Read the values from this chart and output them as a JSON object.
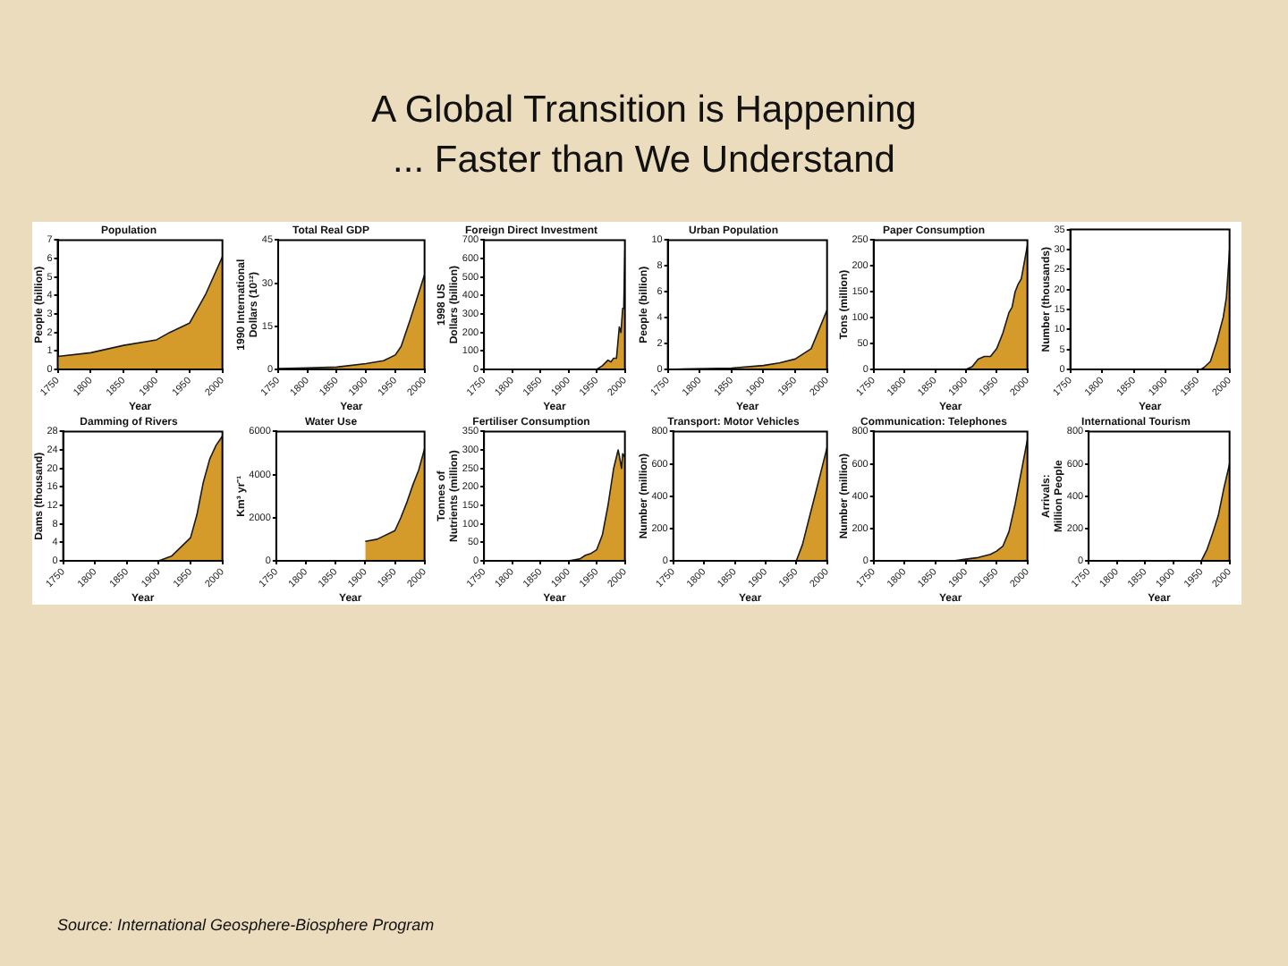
{
  "chart_data": [
    {
      "type": "other",
      "title": "A Global Transition is Happening\n... Faster than We Understand",
      "annotations": [
        "Source: International Geosphere-Biosphere Program"
      ]
    },
    {
      "type": "area",
      "title": "Population",
      "xlabel": "Year",
      "ylabel": "People (billion)",
      "x": [
        1750,
        1800,
        1850,
        1900,
        1920,
        1950,
        1975,
        2000
      ],
      "values": [
        0.7,
        0.9,
        1.3,
        1.6,
        2.0,
        2.5,
        4.1,
        6.1
      ],
      "color": "#d49a2a",
      "xlim": [
        1750,
        2000
      ],
      "xticks": [
        1750,
        1800,
        1850,
        1900,
        1950,
        2000
      ],
      "ylim": [
        0,
        7
      ],
      "yticks": [
        0,
        1,
        2,
        3,
        4,
        5,
        6,
        7
      ]
    },
    {
      "type": "area",
      "title": "Total Real GDP",
      "xlabel": "Year",
      "ylabel": "1990 International Dollars (10¹²)",
      "x": [
        1750,
        1800,
        1850,
        1900,
        1930,
        1950,
        1960,
        1975,
        2000
      ],
      "values": [
        0.3,
        0.5,
        0.8,
        2,
        3,
        5,
        8,
        17,
        33
      ],
      "color": "#d49a2a",
      "xlim": [
        1750,
        2000
      ],
      "xticks": [
        1750,
        1800,
        1850,
        1900,
        1950,
        2000
      ],
      "ylim": [
        0,
        45
      ],
      "yticks": [
        0,
        15,
        30,
        45
      ]
    },
    {
      "type": "area",
      "title": "Foreign Direct Investment",
      "xlabel": "Year",
      "ylabel": "1998 US Dollars (billion)",
      "x": [
        1750,
        1950,
        1960,
        1970,
        1975,
        1980,
        1985,
        1990,
        1993,
        1996,
        1998,
        2000
      ],
      "values": [
        0,
        0,
        20,
        50,
        40,
        60,
        60,
        230,
        200,
        330,
        350,
        650
      ],
      "color": "#d49a2a",
      "xlim": [
        1750,
        2000
      ],
      "xticks": [
        1750,
        1800,
        1850,
        1900,
        1950,
        2000
      ],
      "ylim": [
        0,
        700
      ],
      "yticks": [
        0,
        100,
        200,
        300,
        400,
        500,
        600,
        700
      ]
    },
    {
      "type": "area",
      "title": "Urban Population",
      "xlabel": "Year",
      "ylabel": "People (billion)",
      "x": [
        1750,
        1850,
        1900,
        1925,
        1950,
        1975,
        2000
      ],
      "values": [
        0,
        0.1,
        0.3,
        0.5,
        0.8,
        1.6,
        4.6
      ],
      "color": "#d49a2a",
      "xlim": [
        1750,
        2000
      ],
      "xticks": [
        1750,
        1800,
        1850,
        1900,
        1950,
        2000
      ],
      "ylim": [
        0,
        10
      ],
      "yticks": [
        0,
        2,
        4,
        6,
        8,
        10
      ]
    },
    {
      "type": "area",
      "title": "Paper Consumption",
      "xlabel": "Year",
      "ylabel": "Tons (million)",
      "x": [
        1900,
        1910,
        1920,
        1930,
        1940,
        1950,
        1960,
        1970,
        1975,
        1980,
        1985,
        1990,
        2000
      ],
      "values": [
        0,
        5,
        20,
        25,
        25,
        40,
        70,
        110,
        120,
        150,
        165,
        175,
        240
      ],
      "color": "#d49a2a",
      "xlim": [
        1750,
        2000
      ],
      "xticks": [
        1750,
        1800,
        1850,
        1900,
        1950,
        2000
      ],
      "ylim": [
        0,
        250
      ],
      "yticks": [
        0,
        50,
        100,
        150,
        200,
        250
      ]
    },
    {
      "type": "area",
      "xlabel": "Year",
      "ylabel": "Number (thousands)",
      "x": [
        1955,
        1960,
        1970,
        1980,
        1990,
        1995,
        2000
      ],
      "values": [
        0,
        0.5,
        2,
        7,
        13,
        18,
        30
      ],
      "color": "#d49a2a",
      "xlim": [
        1750,
        2000
      ],
      "xticks": [
        1750,
        1800,
        1850,
        1900,
        1950,
        2000
      ],
      "ylim": [
        0,
        35
      ],
      "yticks": [
        0,
        5,
        10,
        15,
        20,
        25,
        30,
        35
      ]
    },
    {
      "type": "area",
      "title": "Damming of Rivers",
      "xlabel": "Year",
      "ylabel": "Dams (thousand)",
      "x": [
        1900,
        1920,
        1950,
        1960,
        1970,
        1980,
        1990,
        2000
      ],
      "values": [
        0,
        1,
        5,
        10,
        17,
        22,
        25,
        27
      ],
      "color": "#d49a2a",
      "xlim": [
        1750,
        2000
      ],
      "xticks": [
        1750,
        1800,
        1850,
        1900,
        1950,
        2000
      ],
      "ylim": [
        0,
        28
      ],
      "yticks": [
        0,
        4,
        8,
        12,
        16,
        20,
        24,
        28
      ]
    },
    {
      "type": "area",
      "title": "Water Use",
      "xlabel": "Year",
      "ylabel": "Km³ yr⁻¹",
      "x": [
        1900,
        1920,
        1950,
        1960,
        1970,
        1980,
        1990,
        2000
      ],
      "values": [
        900,
        1000,
        1400,
        2000,
        2700,
        3500,
        4200,
        5200
      ],
      "color": "#d49a2a",
      "xlim": [
        1750,
        2000
      ],
      "xticks": [
        1750,
        1800,
        1850,
        1900,
        1950,
        2000
      ],
      "ylim": [
        0,
        6000
      ],
      "yticks": [
        0,
        2000,
        4000,
        6000
      ]
    },
    {
      "type": "area",
      "title": "Fertiliser Consumption",
      "xlabel": "Year",
      "ylabel": "Tonnes of Nutrients (million)",
      "x": [
        1900,
        1920,
        1930,
        1940,
        1950,
        1960,
        1970,
        1980,
        1988,
        1990,
        1994,
        1996,
        2000
      ],
      "values": [
        0,
        5,
        15,
        20,
        30,
        70,
        150,
        250,
        300,
        285,
        250,
        290,
        280
      ],
      "color": "#d49a2a",
      "xlim": [
        1750,
        2000
      ],
      "xticks": [
        1750,
        1800,
        1850,
        1900,
        1950,
        2000
      ],
      "ylim": [
        0,
        350
      ],
      "yticks": [
        0,
        50,
        100,
        150,
        200,
        250,
        300,
        350
      ]
    },
    {
      "type": "area",
      "title": "Transport: Motor Vehicles",
      "xlabel": "Year",
      "ylabel": "Number (million)",
      "x": [
        1950,
        1960,
        1970,
        1980,
        1990,
        2000
      ],
      "values": [
        0,
        100,
        250,
        400,
        550,
        700
      ],
      "color": "#d49a2a",
      "xlim": [
        1750,
        2000
      ],
      "xticks": [
        1750,
        1800,
        1850,
        1900,
        1950,
        2000
      ],
      "ylim": [
        0,
        800
      ],
      "yticks": [
        0,
        200,
        400,
        600,
        800
      ]
    },
    {
      "type": "area",
      "title": "Communication: Telephones",
      "xlabel": "Year",
      "ylabel": "Number (million)",
      "x": [
        1880,
        1900,
        1920,
        1940,
        1950,
        1960,
        1970,
        1980,
        1990,
        2000
      ],
      "values": [
        0,
        10,
        20,
        40,
        60,
        90,
        180,
        350,
        550,
        750
      ],
      "color": "#d49a2a",
      "xlim": [
        1750,
        2000
      ],
      "xticks": [
        1750,
        1800,
        1850,
        1900,
        1950,
        2000
      ],
      "ylim": [
        0,
        800
      ],
      "yticks": [
        0,
        200,
        400,
        600,
        800
      ]
    },
    {
      "type": "area",
      "title": "International Tourism",
      "xlabel": "Year",
      "ylabel": "Arrivals: Million People",
      "x": [
        1950,
        1960,
        1970,
        1980,
        1990,
        2000
      ],
      "values": [
        0,
        70,
        170,
        280,
        450,
        600
      ],
      "color": "#d49a2a",
      "xlim": [
        1750,
        2000
      ],
      "xticks": [
        1750,
        1800,
        1850,
        1900,
        1950,
        2000
      ],
      "ylim": [
        0,
        800
      ],
      "yticks": [
        0,
        200,
        400,
        600,
        800
      ]
    }
  ]
}
